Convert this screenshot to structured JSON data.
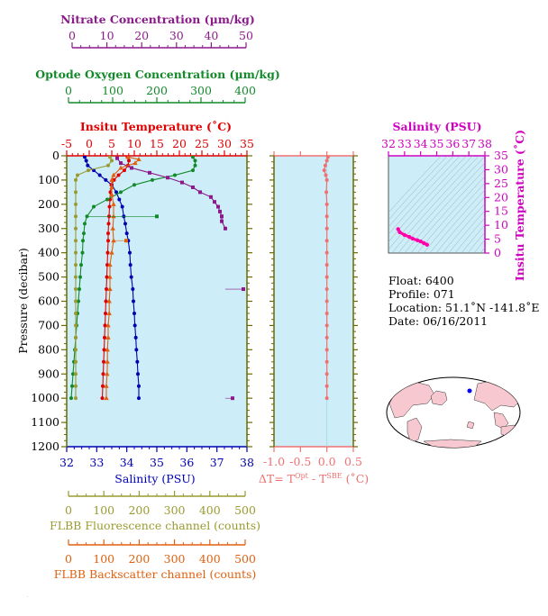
{
  "colors": {
    "nitrate": "#8b1a8b",
    "oxygen": "#128a2a",
    "temperature": "#e00000",
    "salinity": "#0000b0",
    "fluorescence": "#9a9a30",
    "backscatter": "#e06010",
    "delta": "#f07070",
    "ts_axis": "#d000c0",
    "ts_curve": "#ff00aa",
    "plot_bg": "#cdeef8",
    "frame": "#6a6a00"
  },
  "labels": {
    "nitrate_title": "Nitrate Concentration (µm/kg)",
    "oxygen_title": "Optode Oxygen Concentration (µm/kg)",
    "temp_title": "Insitu Temperature (˚C)",
    "salinity_bottom_title": "Salinity (PSU)",
    "pressure_title": "Pressure (decibar)",
    "fluor_title": "FLBB Fluorescence channel (counts)",
    "backscatter_title": "FLBB Backscatter channel (counts)",
    "delta_title_main": "ΔT= T",
    "delta_sup1": "Opt",
    "delta_mid": " - T",
    "delta_sup2": "SBE",
    "delta_units": " (˚C)",
    "ts_top_title": "Salinity (PSU)",
    "ts_right_title": "Insitu Temperature (˚C)"
  },
  "info": {
    "float": "Float:  6400",
    "profile": "Profile:  071",
    "location": "Location:  51.1˚N  -141.8˚E",
    "date": "Date:  06/16/2011"
  },
  "chart_data": [
    {
      "id": "main-profile",
      "type": "line",
      "ylabel": "Pressure (decibar)",
      "ylim": [
        1200,
        0
      ],
      "yticks": [
        0,
        100,
        200,
        300,
        400,
        500,
        600,
        700,
        800,
        900,
        1000,
        1100,
        1200
      ],
      "axes": {
        "nitrate": {
          "label": "Nitrate Concentration (µm/kg)",
          "lim": [
            0,
            50
          ],
          "ticks": [
            0,
            10,
            20,
            30,
            40,
            50
          ]
        },
        "oxygen": {
          "label": "Optode Oxygen Concentration (µm/kg)",
          "lim": [
            0,
            400
          ],
          "ticks": [
            0,
            100,
            200,
            300,
            400
          ]
        },
        "temperature": {
          "label": "Insitu Temperature (˚C)",
          "lim": [
            -5,
            35
          ],
          "ticks": [
            -5,
            0,
            5,
            10,
            15,
            20,
            25,
            30,
            35
          ]
        },
        "salinity": {
          "label": "Salinity (PSU)",
          "lim": [
            32,
            38
          ],
          "ticks": [
            32,
            33,
            34,
            35,
            36,
            37,
            38
          ]
        },
        "fluorescence": {
          "label": "FLBB Fluorescence channel (counts)",
          "lim": [
            0,
            500
          ],
          "ticks": [
            0,
            100,
            200,
            300,
            400,
            500
          ]
        },
        "backscatter": {
          "label": "FLBB Backscatter channel (counts)",
          "lim": [
            0,
            500
          ],
          "ticks": [
            0,
            100,
            200,
            300,
            400,
            500
          ]
        }
      },
      "series": [
        {
          "key": "salinity",
          "points": [
            [
              32.6,
              5
            ],
            [
              32.65,
              20
            ],
            [
              32.7,
              40
            ],
            [
              32.9,
              60
            ],
            [
              33.1,
              80
            ],
            [
              33.3,
              100
            ],
            [
              33.5,
              120
            ],
            [
              33.65,
              150
            ],
            [
              33.75,
              180
            ],
            [
              33.85,
              210
            ],
            [
              33.9,
              250
            ],
            [
              33.95,
              280
            ],
            [
              34.0,
              320
            ],
            [
              34.05,
              350
            ],
            [
              34.1,
              400
            ],
            [
              34.12,
              450
            ],
            [
              34.15,
              500
            ],
            [
              34.2,
              550
            ],
            [
              34.22,
              600
            ],
            [
              34.25,
              650
            ],
            [
              34.27,
              700
            ],
            [
              34.3,
              750
            ],
            [
              34.32,
              800
            ],
            [
              34.35,
              850
            ],
            [
              34.37,
              900
            ],
            [
              34.4,
              950
            ],
            [
              34.4,
              1000
            ]
          ]
        },
        {
          "key": "temperature",
          "points": [
            [
              8.5,
              5
            ],
            [
              8.8,
              20
            ],
            [
              8.6,
              40
            ],
            [
              7.8,
              60
            ],
            [
              6.5,
              80
            ],
            [
              5.5,
              100
            ],
            [
              4.9,
              120
            ],
            [
              4.7,
              150
            ],
            [
              4.6,
              180
            ],
            [
              4.5,
              210
            ],
            [
              4.4,
              250
            ],
            [
              4.3,
              280
            ],
            [
              4.2,
              320
            ],
            [
              4.2,
              350
            ],
            [
              4.1,
              400
            ],
            [
              4.0,
              450
            ],
            [
              3.9,
              500
            ],
            [
              3.8,
              550
            ],
            [
              3.7,
              600
            ],
            [
              3.6,
              650
            ],
            [
              3.5,
              700
            ],
            [
              3.4,
              750
            ],
            [
              3.3,
              800
            ],
            [
              3.2,
              850
            ],
            [
              3.1,
              900
            ],
            [
              3.0,
              950
            ],
            [
              2.9,
              1000
            ]
          ]
        },
        {
          "key": "oxygen",
          "points": [
            [
              280,
              5
            ],
            [
              285,
              20
            ],
            [
              285,
              40
            ],
            [
              280,
              60
            ],
            [
              240,
              80
            ],
            [
              190,
              100
            ],
            [
              150,
              120
            ],
            [
              120,
              150
            ],
            [
              90,
              180
            ],
            [
              60,
              210
            ],
            [
              45,
              250
            ],
            [
              40,
              280
            ],
            [
              38,
              320
            ],
            [
              36,
              350
            ],
            [
              35,
              400
            ],
            [
              32,
              450
            ],
            [
              30,
              500
            ],
            [
              28,
              550
            ],
            [
              26,
              600
            ],
            [
              24,
              650
            ],
            [
              22,
              700
            ],
            [
              20,
              750
            ],
            [
              18,
              800
            ],
            [
              16,
              850
            ],
            [
              14,
              900
            ],
            [
              12,
              950
            ],
            [
              10,
              1000
            ]
          ]
        },
        {
          "key": "nitrate",
          "points": [
            [
              14,
              10
            ],
            [
              15,
              30
            ],
            [
              18,
              50
            ],
            [
              23,
              70
            ],
            [
              28,
              90
            ],
            [
              32,
              110
            ],
            [
              35,
              130
            ],
            [
              37,
              150
            ],
            [
              40,
              170
            ],
            [
              41,
              190
            ],
            [
              42,
              210
            ],
            [
              42.5,
              230
            ],
            [
              43,
              250
            ],
            [
              43,
              270
            ],
            [
              44,
              300
            ]
          ]
        },
        {
          "key": "fluorescence",
          "points": [
            [
              120,
              5
            ],
            [
              125,
              20
            ],
            [
              115,
              40
            ],
            [
              60,
              60
            ],
            [
              30,
              80
            ],
            [
              25,
              100
            ],
            [
              25,
              150
            ],
            [
              25,
              200
            ],
            [
              25,
              250
            ],
            [
              25,
              300
            ],
            [
              25,
              350
            ],
            [
              25,
              400
            ],
            [
              25,
              450
            ],
            [
              25,
              500
            ],
            [
              25,
              550
            ],
            [
              25,
              600
            ],
            [
              25,
              650
            ],
            [
              25,
              700
            ],
            [
              25,
              750
            ],
            [
              25,
              800
            ],
            [
              25,
              850
            ],
            [
              25,
              900
            ],
            [
              25,
              950
            ],
            [
              25,
              1000
            ]
          ]
        },
        {
          "key": "backscatter",
          "points": [
            [
              170,
              5
            ],
            [
              200,
              15
            ],
            [
              190,
              30
            ],
            [
              150,
              50
            ],
            [
              130,
              80
            ],
            [
              125,
              100
            ],
            [
              125,
              130
            ],
            [
              125,
              160
            ],
            [
              130,
              200
            ],
            [
              130,
              250
            ],
            [
              128,
              300
            ],
            [
              130,
              350
            ],
            [
              125,
              400
            ],
            [
              120,
              450
            ],
            [
              120,
              500
            ],
            [
              120,
              550
            ],
            [
              118,
              600
            ],
            [
              118,
              650
            ],
            [
              115,
              700
            ],
            [
              115,
              750
            ],
            [
              113,
              800
            ],
            [
              113,
              850
            ],
            [
              112,
              900
            ],
            [
              110,
              950
            ],
            [
              110,
              1000
            ]
          ]
        }
      ],
      "spikes": [
        {
          "key": "nitrate",
          "pressure": 250,
          "value": 43
        },
        {
          "key": "nitrate",
          "pressure": 550,
          "value": 49
        },
        {
          "key": "nitrate",
          "pressure": 1000,
          "value": 46
        },
        {
          "key": "backscatter",
          "pressure": 350,
          "value": 165
        },
        {
          "key": "oxygen",
          "pressure": 250,
          "value": 200
        }
      ]
    },
    {
      "id": "delta-t",
      "type": "line",
      "xlim": [
        -1.0,
        0.5
      ],
      "xticks": [
        -1.0,
        -0.5,
        0.0,
        0.5
      ],
      "xticklabels": [
        "-1.0",
        "-0.5",
        "0.0",
        "0.5"
      ],
      "ylim": [
        1200,
        0
      ],
      "points": [
        [
          0.02,
          5
        ],
        [
          0.0,
          20
        ],
        [
          -0.03,
          40
        ],
        [
          -0.05,
          60
        ],
        [
          -0.02,
          80
        ],
        [
          0.0,
          100
        ],
        [
          -0.01,
          150
        ],
        [
          0.0,
          200
        ],
        [
          0.0,
          250
        ],
        [
          0.0,
          300
        ],
        [
          0.0,
          350
        ],
        [
          0.0,
          400
        ],
        [
          0.0,
          450
        ],
        [
          0.0,
          500
        ],
        [
          0.0,
          550
        ],
        [
          0.0,
          600
        ],
        [
          0.0,
          650
        ],
        [
          0.0,
          700
        ],
        [
          0.0,
          750
        ],
        [
          0.0,
          800
        ],
        [
          0.0,
          850
        ],
        [
          0.0,
          900
        ],
        [
          0.0,
          950
        ],
        [
          0.0,
          1000
        ]
      ]
    },
    {
      "id": "ts-diagram",
      "type": "line",
      "xlabel": "Salinity (PSU)",
      "ylabel": "Insitu Temperature (˚C)",
      "xlim": [
        32,
        38
      ],
      "xticks": [
        32,
        33,
        34,
        35,
        36,
        37,
        38
      ],
      "ylim": [
        0,
        35
      ],
      "yticks": [
        0,
        5,
        10,
        15,
        20,
        25,
        30,
        35
      ],
      "points": [
        [
          32.6,
          8.6
        ],
        [
          32.7,
          7.5
        ],
        [
          33.0,
          6.5
        ],
        [
          33.3,
          5.8
        ],
        [
          33.5,
          5.2
        ],
        [
          33.8,
          4.6
        ],
        [
          34.0,
          4.2
        ],
        [
          34.2,
          3.6
        ],
        [
          34.4,
          3.0
        ]
      ]
    }
  ]
}
